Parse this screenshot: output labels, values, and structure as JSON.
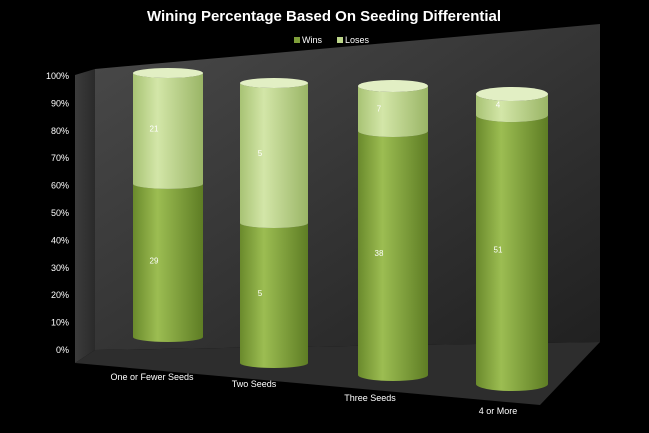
{
  "chart_data": {
    "type": "bar",
    "stacked": true,
    "percent_stacked": true,
    "shape": "3d-cylinder",
    "title": "Wining Percentage Based On Seeding Differential",
    "categories": [
      "One or Fewer  Seeds",
      "Two Seeds",
      "Three Seeds",
      "4 or More"
    ],
    "series": [
      {
        "name": "Wins",
        "values": [
          29,
          5,
          38,
          51
        ],
        "color": "#7f9f3a"
      },
      {
        "name": "Loses",
        "values": [
          21,
          5,
          7,
          4
        ],
        "color": "#bdd68a"
      }
    ],
    "yticks": [
      "0%",
      "10%",
      "20%",
      "30%",
      "40%",
      "50%",
      "60%",
      "70%",
      "80%",
      "90%",
      "100%"
    ],
    "ylim": [
      0,
      100
    ],
    "legend": "top-right",
    "grid": false
  },
  "colors": {
    "background": "#000000",
    "back_wall": "#3a3a3a",
    "floor": "#2a2a2a",
    "text": "#ffffff"
  }
}
